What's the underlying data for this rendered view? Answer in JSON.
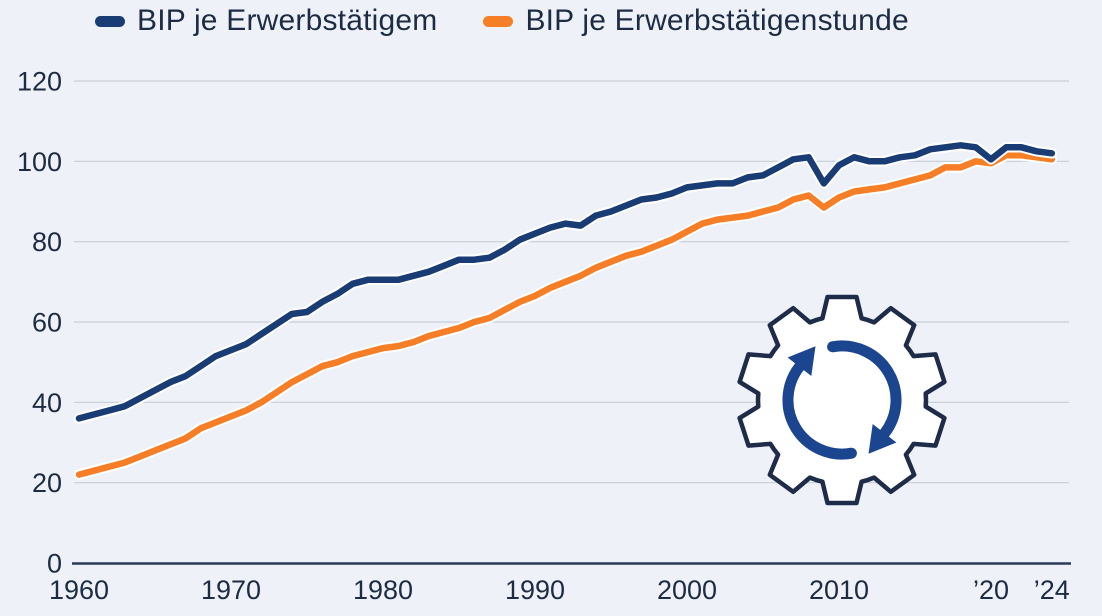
{
  "colors": {
    "background": "#eef2f8",
    "series_blue": "#1a3c74",
    "series_orange": "#f57e26",
    "grid": "#c7cdd7",
    "axis": "#2a3a55",
    "text": "#1e2b44",
    "line_casing": "#ffffff",
    "gear_outline": "#1e2c49",
    "gear_fill": "#ffffff",
    "gear_arrows": "#1c4590"
  },
  "legend": {
    "items": [
      {
        "label": "BIP je Erwerbstätigem",
        "color": "#1a3c74"
      },
      {
        "label": "BIP je Erwerbstätigenstunde",
        "color": "#f57e26"
      }
    ]
  },
  "icon": {
    "name": "gear-cycle-icon",
    "description": "white gear with two circular sync arrows"
  },
  "chart_data": {
    "type": "line",
    "title": "",
    "xlabel": "",
    "ylabel": "",
    "grid": true,
    "legend_position": "top",
    "ylim": [
      0,
      120
    ],
    "yticks": [
      0,
      20,
      40,
      60,
      80,
      100,
      120
    ],
    "xtick_years": [
      1960,
      1970,
      1980,
      1990,
      2000,
      2010,
      2020,
      2024
    ],
    "xtick_labels": [
      "1960",
      "1970",
      "1980",
      "1990",
      "2000",
      "2010",
      "’20",
      "’24"
    ],
    "x": [
      1960,
      1961,
      1962,
      1963,
      1964,
      1965,
      1966,
      1967,
      1968,
      1969,
      1970,
      1971,
      1972,
      1973,
      1974,
      1975,
      1976,
      1977,
      1978,
      1979,
      1980,
      1981,
      1982,
      1983,
      1984,
      1985,
      1986,
      1987,
      1988,
      1989,
      1990,
      1991,
      1992,
      1993,
      1994,
      1995,
      1996,
      1997,
      1998,
      1999,
      2000,
      2001,
      2002,
      2003,
      2004,
      2005,
      2006,
      2007,
      2008,
      2009,
      2010,
      2011,
      2012,
      2013,
      2014,
      2015,
      2016,
      2017,
      2018,
      2019,
      2020,
      2021,
      2022,
      2023,
      2024
    ],
    "series": [
      {
        "name": "BIP je Erwerbstätigem",
        "color": "#1a3c74",
        "values": [
          36,
          37,
          38,
          39,
          41,
          43,
          45,
          46.5,
          49,
          51.5,
          53,
          54.5,
          57,
          59.5,
          62,
          62.5,
          65,
          67,
          69.5,
          70.5,
          70.5,
          70.5,
          71.5,
          72.5,
          74,
          75.5,
          75.5,
          76,
          78,
          80.5,
          82,
          83.5,
          84.5,
          84,
          86.5,
          87.5,
          89,
          90.5,
          91,
          92,
          93.5,
          94,
          94.5,
          94.5,
          96,
          96.5,
          98.5,
          100.5,
          101,
          94.5,
          99,
          101,
          100,
          100,
          101,
          101.5,
          103,
          103.5,
          104,
          103.5,
          100.5,
          103.5,
          103.5,
          102.5,
          102
        ]
      },
      {
        "name": "BIP je Erwerbstätigenstunde",
        "color": "#f57e26",
        "values": [
          22,
          23,
          24,
          25,
          26.5,
          28,
          29.5,
          31,
          33.5,
          35,
          36.5,
          38,
          40,
          42.5,
          45,
          47,
          49,
          50,
          51.5,
          52.5,
          53.5,
          54,
          55,
          56.5,
          57.5,
          58.5,
          60,
          61,
          63,
          65,
          66.5,
          68.5,
          70,
          71.5,
          73.5,
          75,
          76.5,
          77.5,
          79,
          80.5,
          82.5,
          84.5,
          85.5,
          86,
          86.5,
          87.5,
          88.5,
          90.5,
          91.5,
          88.5,
          91,
          92.5,
          93,
          93.5,
          94.5,
          95.5,
          96.5,
          98.5,
          98.5,
          100,
          99.5,
          101.5,
          101.5,
          101,
          100.5
        ]
      }
    ]
  }
}
